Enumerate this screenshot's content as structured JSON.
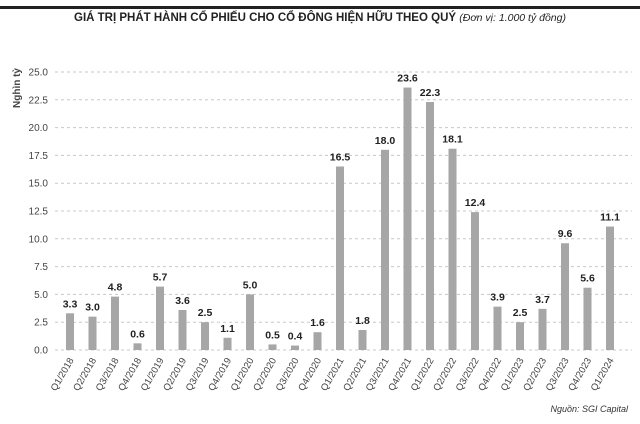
{
  "chart_data": {
    "type": "bar",
    "title": "GIÁ TRỊ PHÁT HÀNH CỔ PHIẾU CHO CỔ ĐÔNG HIỆN HỮU THEO QUÝ",
    "subtitle": "(Đơn vị: 1.000 tỷ đồng)",
    "ylabel": "Nghìn tỷ",
    "xlabel": "",
    "ylim": [
      0,
      25
    ],
    "yticks": [
      "0.0",
      "2.5",
      "5.0",
      "7.5",
      "10.0",
      "12.5",
      "15.0",
      "17.5",
      "20.0",
      "22.5",
      "25.0"
    ],
    "grid": true,
    "bar_color": "#a6a6a6",
    "categories": [
      "Q1/2018",
      "Q2/2018",
      "Q3/2018",
      "Q4/2018",
      "Q1/2019",
      "Q2/2019",
      "Q3/2019",
      "Q4/2019",
      "Q1/2020",
      "Q2/2020",
      "Q3/2020",
      "Q4/2020",
      "Q1/2021",
      "Q2/2021",
      "Q3/2021",
      "Q4/2021",
      "Q1/2022",
      "Q2/2022",
      "Q3/2022",
      "Q4/2022",
      "Q1/2023",
      "Q2/2023",
      "Q3/2023",
      "Q4/2023",
      "Q1/2024"
    ],
    "values": [
      3.3,
      3.0,
      4.8,
      0.6,
      5.7,
      3.6,
      2.5,
      1.1,
      5.0,
      0.5,
      0.4,
      1.6,
      16.5,
      1.8,
      18.0,
      23.6,
      22.3,
      18.1,
      12.4,
      3.9,
      2.5,
      3.7,
      9.6,
      5.6,
      11.1
    ],
    "data_labels": [
      "3.3",
      "3.0",
      "4.8",
      "0.6",
      "5.7",
      "3.6",
      "2.5",
      "1.1",
      "5.0",
      "0.5",
      "0.4",
      "1.6",
      "16.5",
      "1.8",
      "18.0",
      "23.6",
      "22.3",
      "18.1",
      "12.4",
      "3.9",
      "2.5",
      "3.7",
      "9.6",
      "5.6",
      "11.1"
    ]
  },
  "source": "Nguồn: SGI Capital"
}
